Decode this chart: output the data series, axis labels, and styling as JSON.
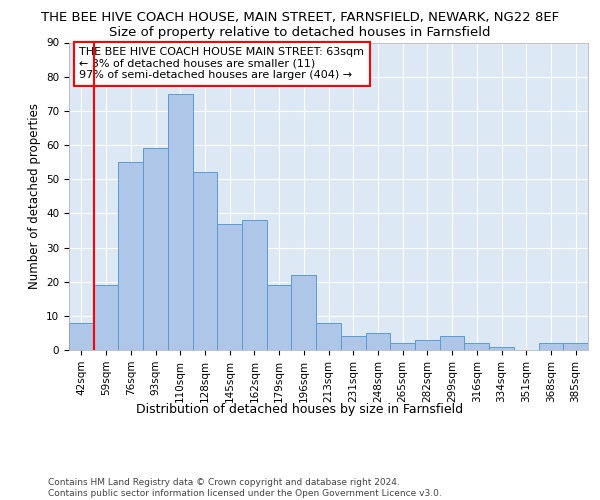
{
  "title": "THE BEE HIVE COACH HOUSE, MAIN STREET, FARNSFIELD, NEWARK, NG22 8EF",
  "subtitle": "Size of property relative to detached houses in Farnsfield",
  "xlabel": "Distribution of detached houses by size in Farnsfield",
  "ylabel": "Number of detached properties",
  "bar_labels": [
    "42sqm",
    "59sqm",
    "76sqm",
    "93sqm",
    "110sqm",
    "128sqm",
    "145sqm",
    "162sqm",
    "179sqm",
    "196sqm",
    "213sqm",
    "231sqm",
    "248sqm",
    "265sqm",
    "282sqm",
    "299sqm",
    "316sqm",
    "334sqm",
    "351sqm",
    "368sqm",
    "385sqm"
  ],
  "bar_values": [
    8,
    19,
    55,
    59,
    75,
    52,
    37,
    38,
    19,
    22,
    8,
    4,
    5,
    2,
    3,
    4,
    2,
    1,
    0,
    2,
    2
  ],
  "bar_color": "#aec6e8",
  "bar_edge_color": "#5b9bd5",
  "property_line_color": "red",
  "annotation_text": "THE BEE HIVE COACH HOUSE MAIN STREET: 63sqm\n← 3% of detached houses are smaller (11)\n97% of semi-detached houses are larger (404) →",
  "annotation_box_color": "white",
  "annotation_box_edge_color": "red",
  "ylim": [
    0,
    90
  ],
  "yticks": [
    0,
    10,
    20,
    30,
    40,
    50,
    60,
    70,
    80,
    90
  ],
  "background_color": "#dde8f5",
  "grid_color": "white",
  "footer_text": "Contains HM Land Registry data © Crown copyright and database right 2024.\nContains public sector information licensed under the Open Government Licence v3.0.",
  "title_fontsize": 9.5,
  "subtitle_fontsize": 9.5,
  "xlabel_fontsize": 9,
  "ylabel_fontsize": 8.5,
  "tick_fontsize": 7.5,
  "annotation_fontsize": 8,
  "footer_fontsize": 6.5
}
